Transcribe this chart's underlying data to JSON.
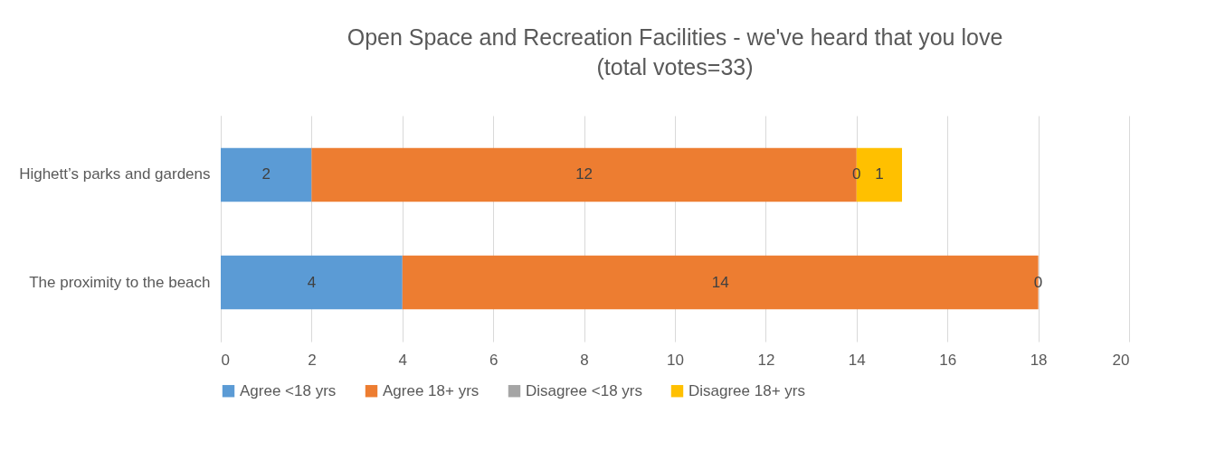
{
  "chart_data": {
    "type": "bar",
    "orientation": "horizontal",
    "stacked": true,
    "title": "Open Space and Recreation Facilities - we've heard that you love",
    "subtitle": "(total votes=33)",
    "categories": [
      "Highett’s parks and gardens",
      "The proximity to the beach"
    ],
    "series": [
      {
        "name": "Agree <18 yrs",
        "color": "#5b9bd5",
        "values": [
          2,
          4
        ]
      },
      {
        "name": "Agree 18+ yrs",
        "color": "#ed7d31",
        "values": [
          12,
          14
        ]
      },
      {
        "name": "Disagree <18 yrs",
        "color": "#a5a5a5",
        "values": [
          0,
          0
        ]
      },
      {
        "name": "Disagree 18+ yrs",
        "color": "#ffc000",
        "values": [
          1,
          null
        ]
      }
    ],
    "xlim": [
      0,
      20
    ],
    "xticks": [
      0,
      2,
      4,
      6,
      8,
      10,
      12,
      14,
      16,
      18,
      20
    ],
    "grid": "x",
    "legend": "bottom",
    "data_labels": true
  }
}
